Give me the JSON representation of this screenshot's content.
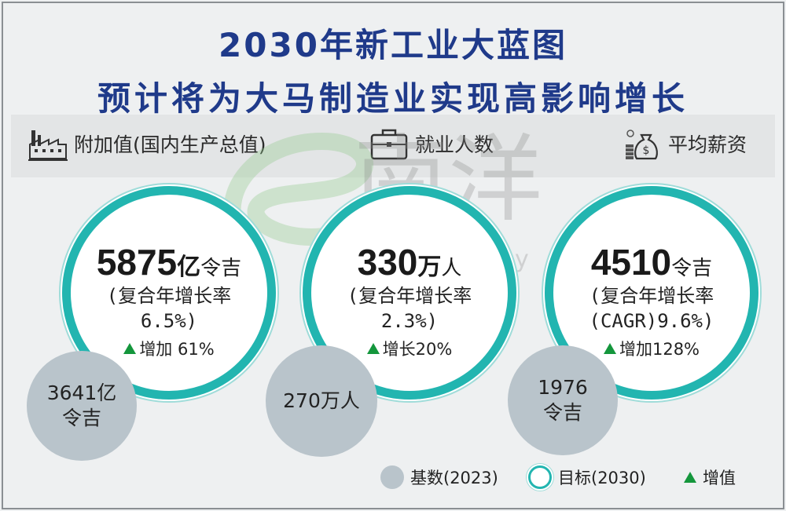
{
  "title": {
    "line1": "2030年新工业大蓝图",
    "line2": "预计将为大马制造业实现高影响增长"
  },
  "categories": [
    {
      "label": "附加值(国内生产总值)",
      "icon": "factory-icon"
    },
    {
      "label": "就业人数",
      "icon": "briefcase-icon"
    },
    {
      "label": "平均薪资",
      "icon": "money-bag-icon"
    }
  ],
  "metrics": [
    {
      "target_number": "5875",
      "target_unit": "亿",
      "target_currency": "令吉",
      "rate_line1": "(复合年增长率",
      "rate_line2": "6.5%)",
      "increase": "增加 61%",
      "base_line1": "3641亿",
      "base_line2": "令吉"
    },
    {
      "target_number": "330",
      "target_unit": "万",
      "target_currency": "人",
      "rate_line1": "(复合年增长率",
      "rate_line2": "2.3%)",
      "increase": "增长20%",
      "base_line1": "270万人",
      "base_line2": ""
    },
    {
      "target_number": "4510",
      "target_unit": "",
      "target_currency": "令吉",
      "rate_line1": "(复合年增长率",
      "rate_line2": "(CAGR)9.6%)",
      "increase": "增加128%",
      "base_line1": "1976",
      "base_line2": "令吉"
    }
  ],
  "legend": {
    "base": "基数(2023)",
    "target": "目标(2030)",
    "increase": "增值"
  },
  "watermark": {
    "brand": "南洋",
    "site": "enanyang.my"
  },
  "colors": {
    "title": "#1f3a8a",
    "ring": "#22b5b0",
    "base": "#b9c4cb",
    "increase": "#14963c"
  }
}
